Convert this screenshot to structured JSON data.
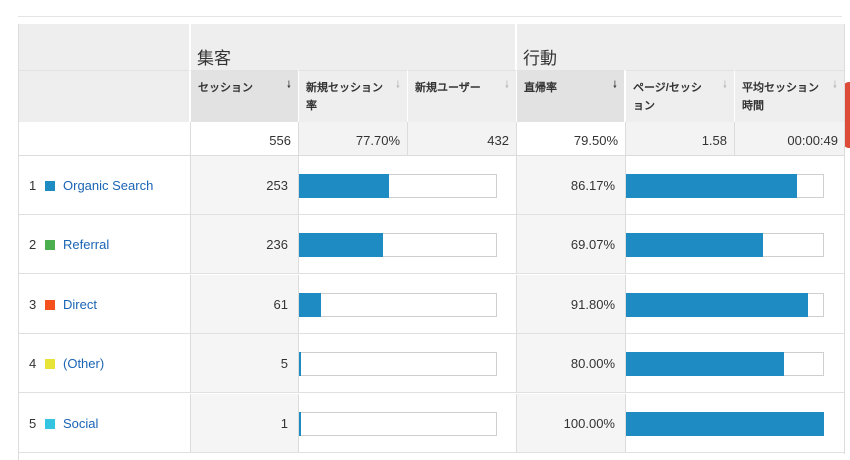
{
  "colors": {
    "accent_bar": "#1e8bc3",
    "link": "#1a64b4"
  },
  "groups": {
    "acquisition": "集客",
    "behavior": "行動"
  },
  "columns": {
    "sessions": "セッション",
    "new_session_rate": "新規セッション率",
    "new_users": "新規ユーザー",
    "bounce_rate": "直帰率",
    "pages_per_session": "ページ/セッション",
    "avg_session_duration": "平均セッション時間"
  },
  "sort_icon": "sort-down-arrow-icon",
  "totals": {
    "sessions": "556",
    "new_session_rate": "77.70%",
    "new_users": "432",
    "bounce_rate": "79.50%",
    "pages_per_session": "1.58",
    "avg_session_duration": "00:00:49"
  },
  "rows": [
    {
      "index": "1",
      "name": "Organic Search",
      "color": "#1e8bc3",
      "sessions": "253",
      "sessions_share": 0.455,
      "bounce_rate": "86.17%",
      "bounce_fraction": 0.8617
    },
    {
      "index": "2",
      "name": "Referral",
      "color": "#4caf50",
      "sessions": "236",
      "sessions_share": 0.4245,
      "bounce_rate": "69.07%",
      "bounce_fraction": 0.6907
    },
    {
      "index": "3",
      "name": "Direct",
      "color": "#f4511e",
      "sessions": "61",
      "sessions_share": 0.1097,
      "bounce_rate": "91.80%",
      "bounce_fraction": 0.918
    },
    {
      "index": "4",
      "name": "(Other)",
      "color": "#e8e337",
      "sessions": "5",
      "sessions_share": 0.009,
      "bounce_rate": "80.00%",
      "bounce_fraction": 0.8
    },
    {
      "index": "5",
      "name": "Social",
      "color": "#36c5e0",
      "sessions": "1",
      "sessions_share": 0.0018,
      "bounce_rate": "100.00%",
      "bounce_fraction": 1.0
    }
  ]
}
